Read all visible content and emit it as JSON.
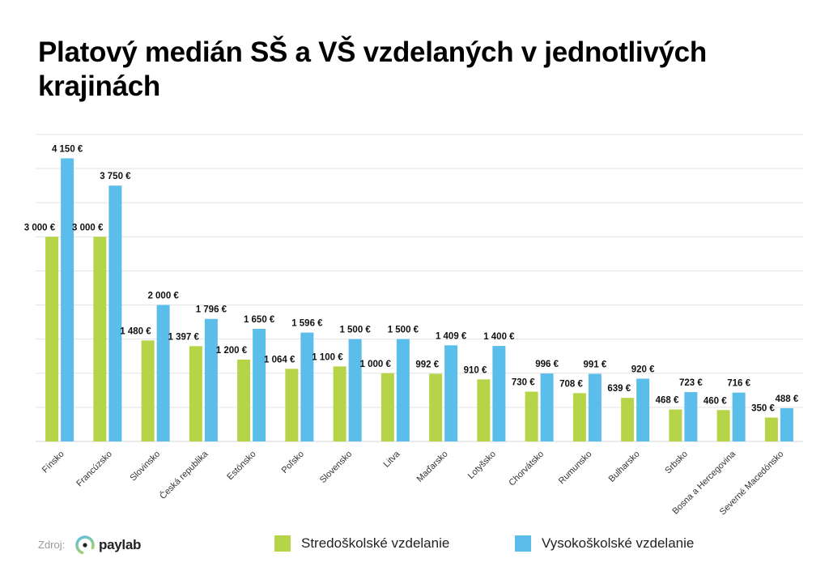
{
  "header": {
    "title": "Platový medián SŠ a VŠ vzdelaných v jednotlivých krajinách"
  },
  "footer": {
    "source_label": "Zdroj:",
    "logo_text": "paylab"
  },
  "colors": {
    "ss": "#b5d447",
    "vs": "#5bbde9",
    "grid": "#e3e3e3"
  },
  "chart_data": {
    "type": "bar",
    "title": "Platový medián SŠ a VŠ vzdelaných v jednotlivých krajinách",
    "xlabel": "",
    "ylabel": "",
    "ylim": [
      0,
      4500
    ],
    "grid": true,
    "grid_step": 500,
    "legend_position": "bottom",
    "unit": "€",
    "categories": [
      "Fínsko",
      "Francúzsko",
      "Slovinsko",
      "Česká republika",
      "Estónsko",
      "Poľsko",
      "Slovensko",
      "Litva",
      "Maďarsko",
      "Lotyšsko",
      "Chorvátsko",
      "Rumunsko",
      "Bulharsko",
      "Srbsko",
      "Bosna a Hercegovina",
      "Severné Macedónsko"
    ],
    "series": [
      {
        "name": "Stredoškolské vzdelanie",
        "values": [
          3000,
          3000,
          1480,
          1397,
          1200,
          1064,
          1100,
          1000,
          992,
          910,
          730,
          708,
          639,
          468,
          460,
          350
        ],
        "labels": [
          "3 000 €",
          "3 000 €",
          "1 480 €",
          "1 397 €",
          "1 200 €",
          "1 064 €",
          "1 100 €",
          "1 000 €",
          "992 €",
          "910 €",
          "730 €",
          "708 €",
          "639 €",
          "468 €",
          "460 €",
          "350 €"
        ]
      },
      {
        "name": "Vysokoškolské vzdelanie",
        "values": [
          4150,
          3750,
          2000,
          1796,
          1650,
          1596,
          1500,
          1500,
          1409,
          1400,
          996,
          991,
          920,
          723,
          716,
          488
        ],
        "labels": [
          "4 150 €",
          "3 750 €",
          "2 000 €",
          "1 796 €",
          "1 650 €",
          "1 596 €",
          "1 500 €",
          "1 500 €",
          "1 409 €",
          "1 400 €",
          "996 €",
          "991 €",
          "920 €",
          "723 €",
          "716 €",
          "488 €"
        ]
      }
    ]
  }
}
